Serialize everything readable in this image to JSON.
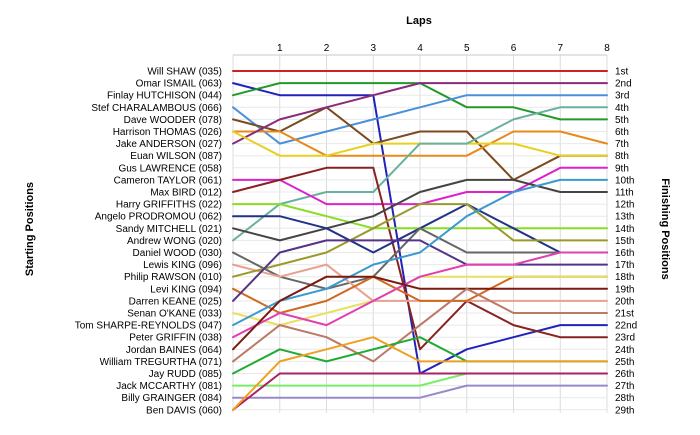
{
  "chart_data": {
    "type": "line",
    "title": "",
    "xlabel": "Laps",
    "ylabel_left": "Starting Positions",
    "ylabel_right": "Finishing Positions",
    "x": [
      0,
      1,
      2,
      3,
      4,
      5,
      6,
      7,
      8
    ],
    "x_tick_labels": [
      "1",
      "2",
      "3",
      "4",
      "5",
      "6",
      "7",
      "8"
    ],
    "y_range": [
      1,
      29
    ],
    "y_inverted": true,
    "grid": true,
    "starting_labels": [
      "Will SHAW (035)",
      "Omar ISMAIL (063)",
      "Finlay HUTCHISON (044)",
      "Stef CHARALAMBOUS (066)",
      "Dave WOODER (078)",
      "Harrison THOMAS (026)",
      "Jake ANDERSON (027)",
      "Euan WILSON (087)",
      "Gus LAWRENCE (058)",
      "Cameron TAYLOR (061)",
      "Max BIRD (012)",
      "Harry GRIFFITHS (022)",
      "Angelo PRODROMOU (062)",
      "Sandy MITCHELL (021)",
      "Andrew WONG (020)",
      "Daniel WOOD (030)",
      "Lewis KING (096)",
      "Philip RAWSON (010)",
      "Levi KING (094)",
      "Darren KEANE (025)",
      "Senan O'KANE (033)",
      "Tom SHARPE-REYNOLDS (047)",
      "Peter GRIFFIN (038)",
      "Jordan BAINES (064)",
      "William TREGURTHA (071)",
      "Jay RUDD (085)",
      "Jack MCCARTHY (081)",
      "Billy GRAINGER (084)",
      "Ben DAVIS (060)"
    ],
    "finishing_labels": [
      "1st",
      "2nd",
      "3rd",
      "4th",
      "5th",
      "6th",
      "7th",
      "8th",
      "9th",
      "10th",
      "11th",
      "12th",
      "13th",
      "14th",
      "15th",
      "16th",
      "17th",
      "18th",
      "19th",
      "20th",
      "21st",
      "22nd",
      "23rd",
      "24th",
      "25th",
      "26th",
      "27th",
      "28th",
      "29th"
    ],
    "series": [
      {
        "values": [
          1,
          1,
          1,
          1,
          1,
          1,
          1,
          1,
          1
        ],
        "color": "#cc2222"
      },
      {
        "values": [
          2,
          3,
          3,
          3,
          26,
          24,
          23,
          22,
          22
        ],
        "color": "#2222bb"
      },
      {
        "values": [
          3,
          2,
          2,
          2,
          2,
          4,
          4,
          5,
          5
        ],
        "color": "#22992a"
      },
      {
        "values": [
          4,
          7,
          6,
          5,
          4,
          3,
          3,
          3,
          3
        ],
        "color": "#4a90d9"
      },
      {
        "values": [
          5,
          6,
          4,
          7,
          6,
          6,
          10,
          8,
          8
        ],
        "color": "#7b4a1e"
      },
      {
        "values": [
          6,
          6,
          8,
          8,
          8,
          8,
          6,
          6,
          7
        ],
        "color": "#e88a1a"
      },
      {
        "values": [
          7,
          5,
          4,
          3,
          2,
          2,
          2,
          2,
          2
        ],
        "color": "#8a2a7a"
      },
      {
        "values": [
          6,
          8,
          8,
          7,
          7,
          7,
          7,
          8,
          8
        ],
        "color": "#e8d020"
      },
      {
        "values": [
          15,
          12,
          11,
          11,
          7,
          7,
          5,
          4,
          4
        ],
        "color": "#6ab0a0"
      },
      {
        "values": [
          10,
          10,
          12,
          12,
          12,
          11,
          11,
          9,
          9
        ],
        "color": "#dd22cc"
      },
      {
        "values": [
          11,
          10,
          9,
          9,
          24,
          20,
          22,
          23,
          23
        ],
        "color": "#882222"
      },
      {
        "values": [
          12,
          12,
          13,
          14,
          14,
          14,
          14,
          14,
          14
        ],
        "color": "#88dd22"
      },
      {
        "values": [
          14,
          15,
          14,
          13,
          11,
          10,
          10,
          11,
          11
        ],
        "color": "#444444"
      },
      {
        "values": [
          13,
          13,
          14,
          16,
          14,
          12,
          14,
          16,
          16
        ],
        "color": "#223388"
      },
      {
        "values": [
          16,
          18,
          19,
          18,
          14,
          16,
          16,
          16,
          16
        ],
        "color": "#666666"
      },
      {
        "values": [
          17,
          18,
          17,
          20,
          20,
          20,
          20,
          20,
          20
        ],
        "color": "#e8a090"
      },
      {
        "values": [
          18,
          17,
          16,
          14,
          12,
          12,
          15,
          15,
          15
        ],
        "color": "#9a9a2a"
      },
      {
        "values": [
          19,
          21,
          20,
          18,
          20,
          20,
          18,
          18,
          18
        ],
        "color": "#d06a20"
      },
      {
        "values": [
          20,
          16,
          15,
          15,
          15,
          17,
          17,
          17,
          17
        ],
        "color": "#553388"
      },
      {
        "values": [
          21,
          22,
          21,
          20,
          18,
          18,
          18,
          18,
          18
        ],
        "color": "#e8e060"
      },
      {
        "values": [
          22,
          20,
          19,
          17,
          16,
          13,
          11,
          10,
          10
        ],
        "color": "#3a9ad0"
      },
      {
        "values": [
          23,
          21,
          22,
          20,
          18,
          17,
          17,
          16,
          16
        ],
        "color": "#e040b0"
      },
      {
        "values": [
          24,
          20,
          18,
          18,
          19,
          19,
          19,
          19,
          19
        ],
        "color": "#7a1a10"
      },
      {
        "values": [
          25,
          22,
          23,
          25,
          22,
          19,
          21,
          21,
          21
        ],
        "color": "#bb7a66"
      },
      {
        "values": [
          26,
          24,
          25,
          24,
          23,
          25,
          25,
          25,
          25
        ],
        "color": "#22aa33"
      },
      {
        "values": [
          27,
          27,
          27,
          27,
          27,
          26,
          26,
          26,
          26
        ],
        "color": "#77ee66"
      },
      {
        "values": [
          28,
          28,
          28,
          28,
          28,
          27,
          27,
          27,
          27
        ],
        "color": "#9a88cc"
      },
      {
        "values": [
          29,
          26,
          26,
          26,
          26,
          26,
          26,
          26,
          26
        ],
        "color": "#aa2266"
      },
      {
        "values": [
          29,
          25,
          24,
          23,
          25,
          25,
          25,
          25,
          25
        ],
        "color": "#f0a020"
      }
    ]
  }
}
